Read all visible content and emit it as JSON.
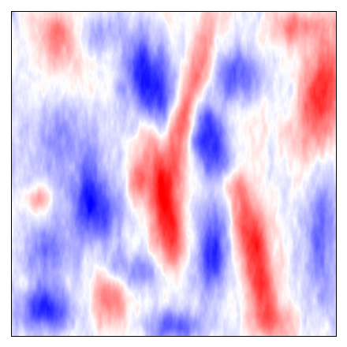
{
  "image": {
    "kind": "diverging colormap field",
    "colormap": "bwr",
    "colors": {
      "low": "#0000ff",
      "mid": "#ffffff",
      "high": "#ff0000",
      "frame": "#000000"
    },
    "axes_visible": false,
    "ticks_visible": false,
    "colorbar_visible": false
  }
}
